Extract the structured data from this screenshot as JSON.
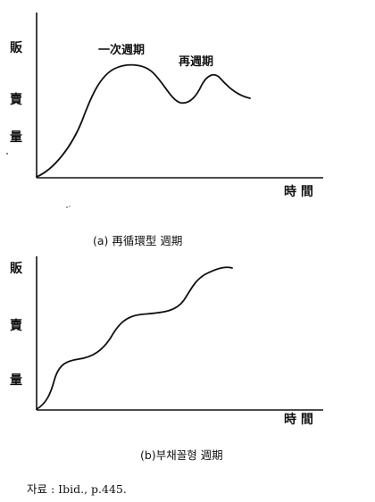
{
  "chart_a": {
    "ylabel_chars": [
      "販",
      "賣",
      "量"
    ],
    "xlabel": "時 間",
    "caption": "(a) 再循環型 週期",
    "annotations": [
      "一次週期",
      "再週期"
    ]
  },
  "chart_b": {
    "ylabel_chars": [
      "販",
      "賣",
      "量"
    ],
    "xlabel": "時 間",
    "caption": "(b)부채꼴형 週期"
  },
  "source": "자료 : Ibid., p.445."
}
